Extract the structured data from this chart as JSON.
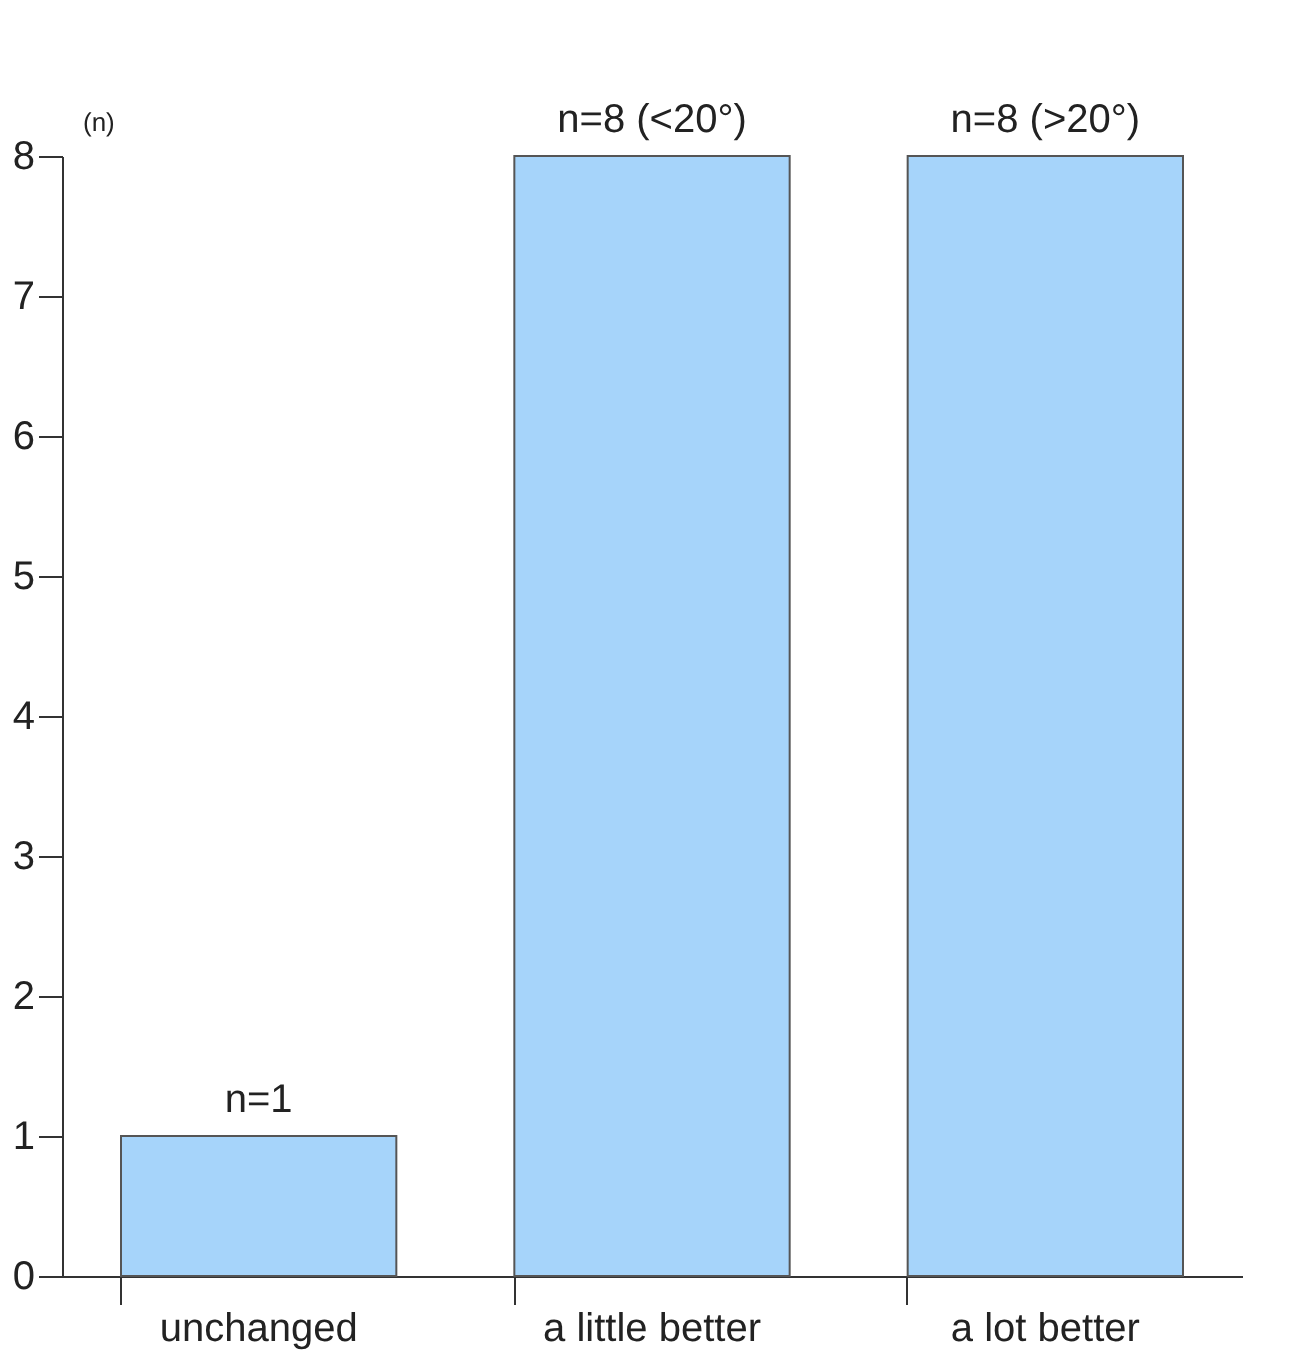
{
  "chart_data": {
    "type": "bar",
    "ylabel": "(n)",
    "categories": [
      "unchanged",
      "a little better",
      "a lot better"
    ],
    "values": [
      1,
      8,
      8
    ],
    "value_labels": [
      "n=1",
      "n=8 (<20°)",
      "n=8 (>20°)"
    ],
    "color": "#a6d4fa",
    "ylim": [
      0,
      8
    ],
    "yticks": [
      0,
      1,
      2,
      3,
      4,
      5,
      6,
      7,
      8
    ]
  }
}
